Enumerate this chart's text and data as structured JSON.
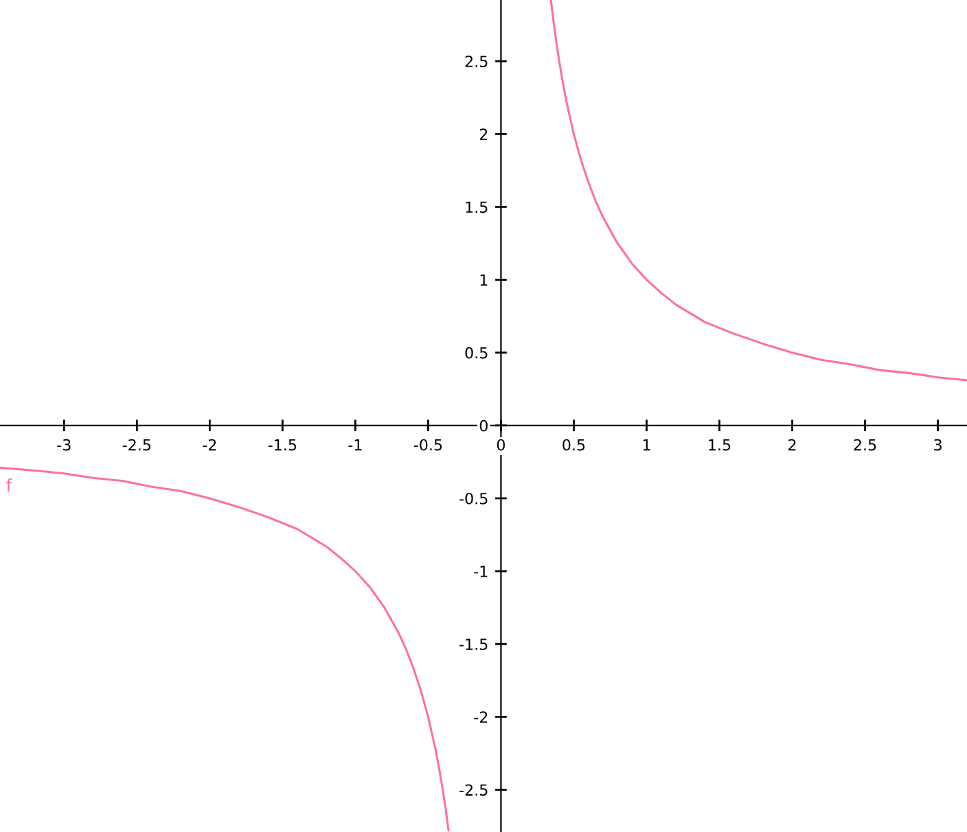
{
  "chart_data": {
    "type": "line",
    "xlim": [
      -3.44,
      3.2
    ],
    "ylim": [
      -2.79,
      2.92
    ],
    "xticks": [
      -3,
      -2.5,
      -2,
      -1.5,
      -1,
      -0.5,
      0,
      0.5,
      1,
      1.5,
      2,
      2.5,
      3
    ],
    "yticks": [
      -2.5,
      -2,
      -1.5,
      -1,
      -0.5,
      0,
      0.5,
      1,
      1.5,
      2,
      2.5
    ],
    "grid": false,
    "marker": "none",
    "line_style": "solid",
    "annotations": [
      "f"
    ],
    "series": [
      {
        "color": "#ff6f9f",
        "x": [
          -3.44,
          -3.2,
          -3,
          -2.8,
          -2.6,
          -2.4,
          -2.2,
          -2,
          -1.8,
          -1.6,
          -1.4,
          -1.2,
          -1.1,
          -1,
          -0.9,
          -0.8,
          -0.7,
          -0.65,
          -0.6,
          -0.55,
          -0.5,
          -0.45,
          -0.42,
          -0.4,
          -0.38,
          -0.36
        ],
        "values": [
          -0.29,
          -0.31,
          -0.33,
          -0.36,
          -0.38,
          -0.42,
          -0.45,
          -0.5,
          -0.56,
          -0.63,
          -0.71,
          -0.83,
          -0.91,
          -1,
          -1.11,
          -1.25,
          -1.43,
          -1.54,
          -1.67,
          -1.82,
          -2,
          -2.22,
          -2.38,
          -2.5,
          -2.63,
          -2.78
        ]
      },
      {
        "color": "#ff6f9f",
        "x": [
          0.343,
          0.36,
          0.38,
          0.4,
          0.42,
          0.45,
          0.5,
          0.55,
          0.6,
          0.65,
          0.7,
          0.8,
          0.9,
          1,
          1.1,
          1.2,
          1.4,
          1.6,
          1.8,
          2,
          2.2,
          2.4,
          2.6,
          2.8,
          3,
          3.2
        ],
        "values": [
          2.92,
          2.78,
          2.63,
          2.5,
          2.38,
          2.22,
          2,
          1.82,
          1.67,
          1.54,
          1.43,
          1.25,
          1.11,
          1,
          0.91,
          0.83,
          0.71,
          0.63,
          0.56,
          0.5,
          0.45,
          0.42,
          0.38,
          0.36,
          0.33,
          0.31
        ]
      }
    ]
  }
}
